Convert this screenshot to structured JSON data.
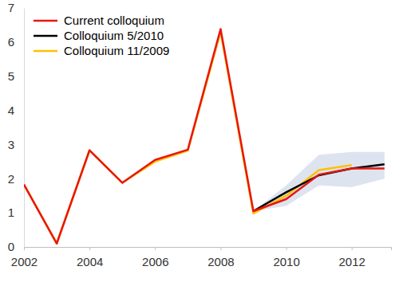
{
  "chart_data": {
    "type": "line",
    "x": [
      2002,
      2003,
      2004,
      2005,
      2006,
      2007,
      2008,
      2009,
      2010,
      2011,
      2012,
      2013
    ],
    "series": [
      {
        "name": "Current colloquium",
        "color": "#e8170e",
        "values": [
          1.83,
          0.1,
          2.83,
          1.88,
          2.55,
          2.85,
          6.38,
          1.05,
          1.4,
          2.12,
          2.3,
          2.3
        ]
      },
      {
        "name": "Colloquium 5/2010",
        "color": "#000000",
        "values": [
          null,
          null,
          null,
          null,
          null,
          null,
          null,
          1.05,
          1.6,
          2.1,
          2.3,
          2.42
        ]
      },
      {
        "name": "Colloquium 11/2009",
        "color": "#ffc000",
        "values": [
          1.83,
          0.1,
          2.83,
          1.88,
          2.5,
          2.82,
          6.3,
          0.98,
          1.5,
          2.25,
          2.4,
          null
        ]
      }
    ],
    "band": {
      "x": [
        2009,
        2010,
        2011,
        2012,
        2013
      ],
      "lower": [
        1.05,
        1.2,
        1.8,
        1.75,
        2.0
      ],
      "upper": [
        1.05,
        1.8,
        2.7,
        2.78,
        2.78
      ],
      "color": "#dde4f0"
    },
    "xlim": [
      2002,
      2013.2
    ],
    "xticks": [
      2002,
      2004,
      2006,
      2008,
      2010,
      2012
    ],
    "ylim": [
      0,
      7
    ],
    "yticks": [
      0,
      1,
      2,
      3,
      4,
      5,
      6,
      7
    ],
    "grid": false,
    "legend": "top-left"
  }
}
